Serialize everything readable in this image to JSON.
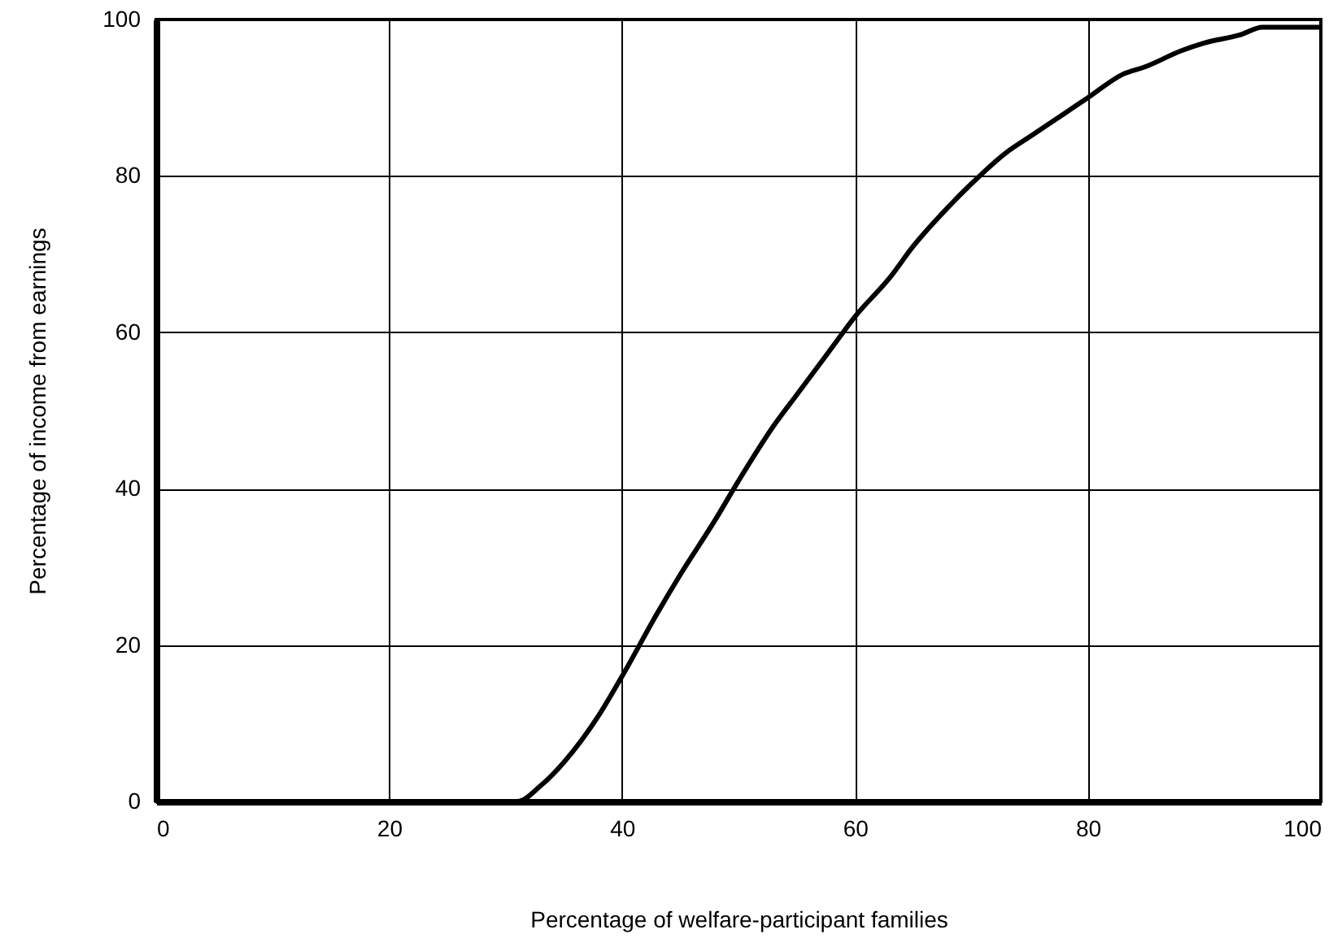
{
  "chart_data": {
    "type": "line",
    "xlabel": "Percentage of welfare-participant families",
    "ylabel": "Percentage of income from earnings",
    "x": [
      0,
      31,
      33,
      35,
      38,
      40,
      43,
      45,
      48,
      50,
      53,
      55,
      58,
      60,
      63,
      65,
      68,
      70,
      73,
      75,
      78,
      80,
      83,
      85,
      88,
      90,
      93,
      95,
      98,
      100
    ],
    "series": [
      {
        "color": "#000000",
        "values": [
          0,
          0,
          2,
          5,
          11,
          16,
          24,
          29,
          36,
          41,
          48,
          52,
          58,
          62,
          67,
          71,
          76,
          79,
          83,
          85,
          88,
          90,
          93,
          94,
          96,
          97,
          98,
          99,
          99,
          99
        ]
      }
    ],
    "xlim": [
      0,
      100
    ],
    "ylim": [
      0,
      100
    ],
    "xticks": [
      0,
      20,
      40,
      60,
      80,
      100
    ],
    "yticks": [
      0,
      20,
      40,
      60,
      80,
      100
    ],
    "grid": true,
    "marker": "none",
    "line_style": "solid"
  }
}
